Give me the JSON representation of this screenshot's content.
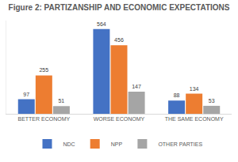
{
  "chart_data": {
    "type": "bar",
    "title": "Figure 2: PARTIZANSHIP AND ECONOMIC EXPECTATIONS",
    "categories": [
      "BETTER ECONOMY",
      "WORSE ECONOMY",
      "THE SAME ECONOMY"
    ],
    "series": [
      {
        "name": "NDC",
        "color": "#4472c4",
        "values": [
          97,
          564,
          88
        ]
      },
      {
        "name": "NPP",
        "color": "#ed7d31",
        "values": [
          255,
          456,
          134
        ]
      },
      {
        "name": "OTHER PARTIES",
        "color": "#a5a5a5",
        "values": [
          51,
          147,
          53
        ]
      }
    ],
    "ylim": [
      0,
      620
    ],
    "grid": false,
    "legend": "bottom",
    "data_labels": true,
    "tick_labels": "x"
  }
}
